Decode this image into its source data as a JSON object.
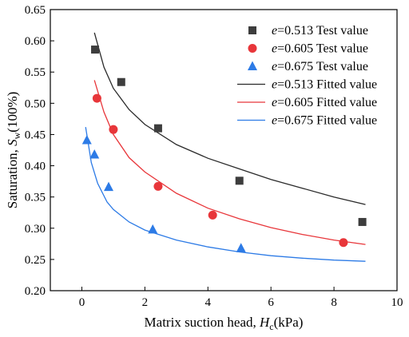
{
  "chart_data": {
    "type": "scatter",
    "xlabel": {
      "main": "Matrix suction head, ",
      "var": "H",
      "sub": "c",
      "unit": "(kPa)"
    },
    "ylabel": {
      "main": "Saturation, ",
      "var": "S",
      "sub": "w",
      "unit": "(100%)"
    },
    "xlim": [
      -1,
      10
    ],
    "ylim": [
      0.2,
      0.65
    ],
    "xticks": [
      0,
      2,
      4,
      6,
      8,
      10
    ],
    "xtick_labels": [
      "0",
      "2",
      "4",
      "6",
      "8",
      "10"
    ],
    "yticks": [
      0.2,
      0.25,
      0.3,
      0.35,
      0.4,
      0.45,
      0.5,
      0.55,
      0.6,
      0.65
    ],
    "ytick_labels": [
      "0.20",
      "0.25",
      "0.30",
      "0.35",
      "0.40",
      "0.45",
      "0.50",
      "0.55",
      "0.60",
      "0.65"
    ],
    "grid": false,
    "legend_position": "top-right",
    "test_series": [
      {
        "e_label": "e",
        "value_label": "=0.513 Test value",
        "marker": "square",
        "color": "#3d3d3d",
        "points": [
          [
            0.42,
            0.586
          ],
          [
            1.25,
            0.534
          ],
          [
            2.42,
            0.46
          ],
          [
            5.0,
            0.376
          ],
          [
            8.9,
            0.31
          ]
        ]
      },
      {
        "e_label": "e",
        "value_label": "=0.605 Test value",
        "marker": "circle",
        "color": "#e8363a",
        "points": [
          [
            0.48,
            0.508
          ],
          [
            1.0,
            0.458
          ],
          [
            2.42,
            0.367
          ],
          [
            4.15,
            0.321
          ],
          [
            8.3,
            0.277
          ]
        ]
      },
      {
        "e_label": "e",
        "value_label": "=0.675 Test value",
        "marker": "triangle",
        "color": "#2d7be6",
        "points": [
          [
            0.16,
            0.441
          ],
          [
            0.4,
            0.418
          ],
          [
            0.85,
            0.366
          ],
          [
            2.25,
            0.298
          ],
          [
            5.05,
            0.268
          ]
        ]
      }
    ],
    "fit_series": [
      {
        "e_label": "e",
        "value_label": "=0.513 Fitted value",
        "color": "#2a2a2a",
        "points": [
          [
            0.4,
            0.613
          ],
          [
            0.7,
            0.558
          ],
          [
            1.0,
            0.524
          ],
          [
            1.5,
            0.49
          ],
          [
            2.0,
            0.466
          ],
          [
            3.0,
            0.434
          ],
          [
            4.0,
            0.412
          ],
          [
            5.0,
            0.395
          ],
          [
            6.0,
            0.378
          ],
          [
            7.0,
            0.364
          ],
          [
            8.0,
            0.35
          ],
          [
            9.0,
            0.338
          ]
        ]
      },
      {
        "e_label": "e",
        "value_label": "=0.605 Fitted value",
        "color": "#e8363a",
        "points": [
          [
            0.4,
            0.537
          ],
          [
            0.7,
            0.486
          ],
          [
            1.0,
            0.45
          ],
          [
            1.5,
            0.413
          ],
          [
            2.0,
            0.39
          ],
          [
            3.0,
            0.356
          ],
          [
            4.0,
            0.332
          ],
          [
            5.0,
            0.315
          ],
          [
            6.0,
            0.301
          ],
          [
            7.0,
            0.29
          ],
          [
            8.0,
            0.281
          ],
          [
            9.0,
            0.274
          ]
        ]
      },
      {
        "e_label": "e",
        "value_label": "=0.675 Fitted value",
        "color": "#2d7be6",
        "points": [
          [
            0.12,
            0.462
          ],
          [
            0.3,
            0.405
          ],
          [
            0.5,
            0.372
          ],
          [
            0.8,
            0.342
          ],
          [
            1.0,
            0.33
          ],
          [
            1.5,
            0.31
          ],
          [
            2.0,
            0.297
          ],
          [
            3.0,
            0.281
          ],
          [
            4.0,
            0.27
          ],
          [
            5.0,
            0.262
          ],
          [
            6.0,
            0.256
          ],
          [
            7.0,
            0.252
          ],
          [
            8.0,
            0.249
          ],
          [
            9.0,
            0.247
          ]
        ]
      }
    ]
  }
}
